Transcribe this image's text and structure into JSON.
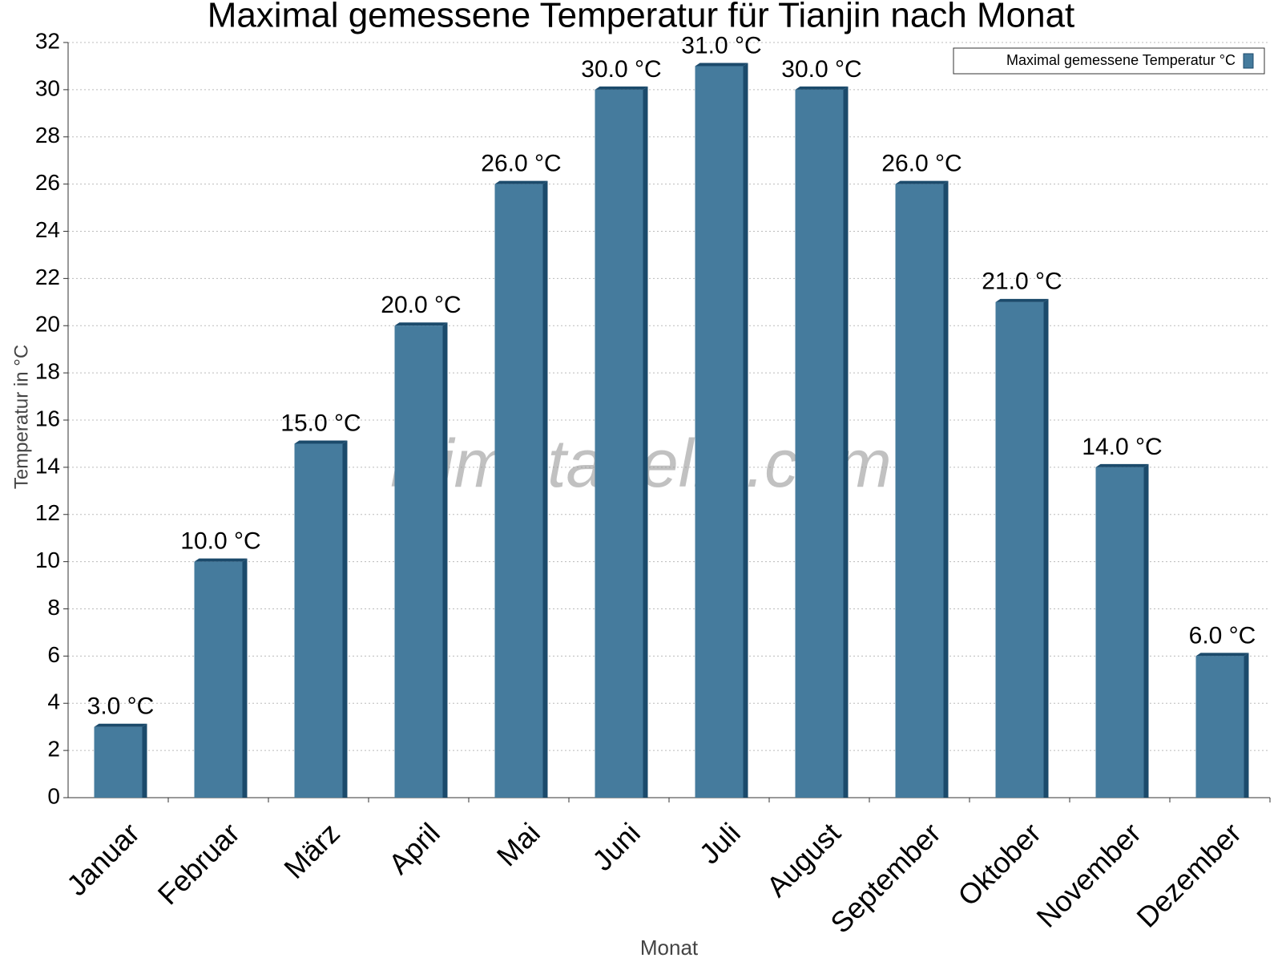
{
  "chart_data": {
    "type": "bar",
    "title": "Maximal gemessene Temperatur für Tianjin nach Monat",
    "watermark": "klimatabelle.com",
    "x_label": "Monat",
    "y_label": "Temperatur in °C",
    "categories": [
      "Januar",
      "Februar",
      "März",
      "April",
      "Mai",
      "Juni",
      "Juli",
      "August",
      "September",
      "Oktober",
      "November",
      "Dezember"
    ],
    "series": [
      {
        "name": "Maximal gemessene Temperatur °C",
        "color": "#457b9d",
        "values": [
          3,
          10,
          15,
          20,
          26,
          30,
          31,
          30,
          26,
          21,
          14,
          6
        ],
        "value_labels": [
          "3.0 °C",
          "10.0 °C",
          "15.0 °C",
          "20.0 °C",
          "26.0 °C",
          "30.0 °C",
          "31.0 °C",
          "30.0 °C",
          "26.0 °C",
          "21.0 °C",
          "14.0 °C",
          "6.0 °C"
        ]
      }
    ],
    "ylim": [
      0,
      32
    ],
    "yticks": [
      0,
      2,
      4,
      6,
      8,
      10,
      12,
      14,
      16,
      18,
      20,
      22,
      24,
      26,
      28,
      30,
      32
    ],
    "grid": true,
    "legend": "top-right"
  }
}
